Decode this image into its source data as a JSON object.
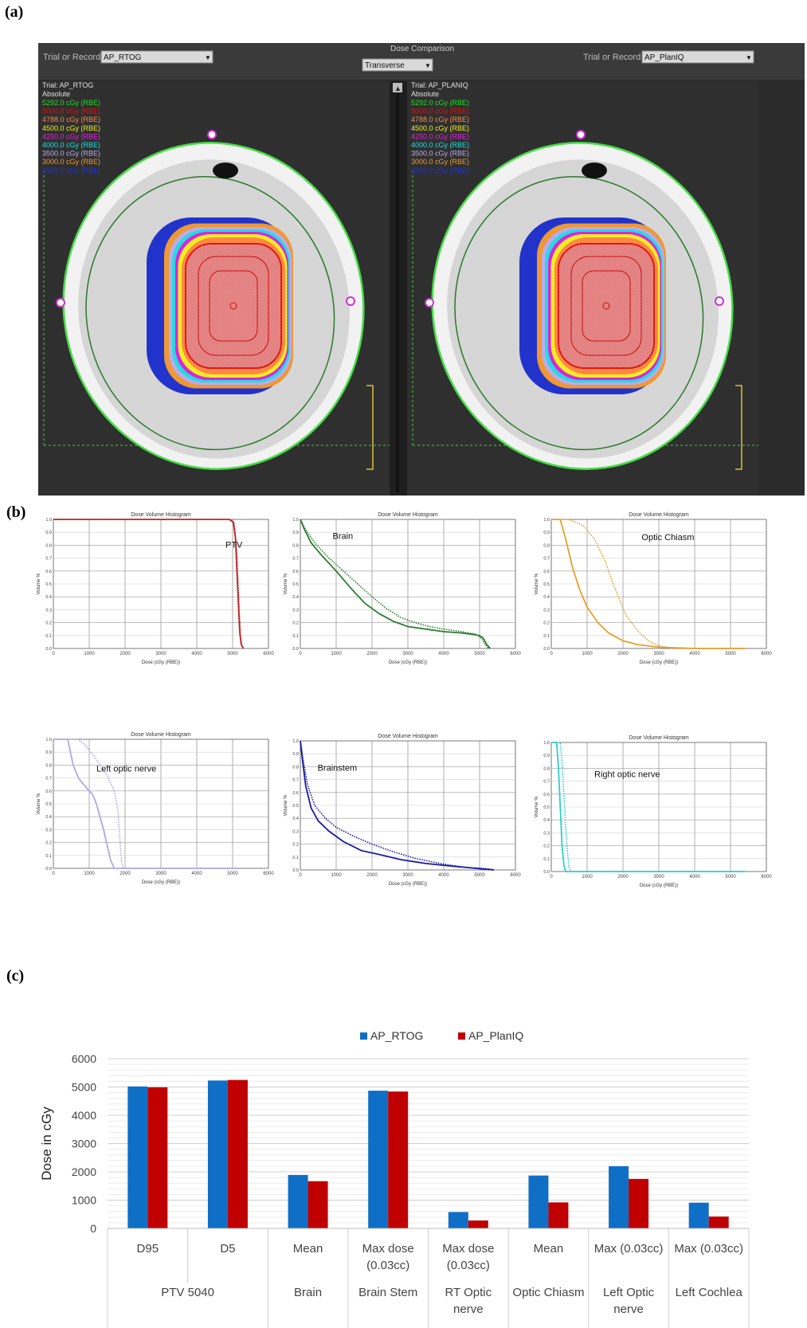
{
  "panels": {
    "a": "(a)",
    "b": "(b)",
    "c": "(c)"
  },
  "dose_comparison": {
    "header_title": "Dose Comparison",
    "view_select": "Transverse",
    "left": {
      "selector_label": "Trial or Record",
      "selector_value": "AP_RTOG",
      "trial_line": "Trial: AP_RTOG",
      "mode_line": "Absolute"
    },
    "right": {
      "selector_label": "Trial or Record",
      "selector_value": "AP_PlanIQ",
      "trial_line": "Trial: AP_PLANIQ",
      "mode_line": "Absolute"
    },
    "isodose_levels": [
      {
        "label": "5292.0 cGy (RBE)",
        "color": "#22dd22"
      },
      {
        "label": "5000.0 cGy (RBE)",
        "color": "#dd1111"
      },
      {
        "label": "4788.0 cGy (RBE)",
        "color": "#ff8844"
      },
      {
        "label": "4500.0 cGy (RBE)",
        "color": "#eeee22"
      },
      {
        "label": "4250.0 cGy (RBE)",
        "color": "#dd22dd"
      },
      {
        "label": "4000.0 cGy (RBE)",
        "color": "#22dddd"
      },
      {
        "label": "3500.0 cGy (RBE)",
        "color": "#bbaaee"
      },
      {
        "label": "3000.0 cGy (RBE)",
        "color": "#ee9933"
      },
      {
        "label": "2500.0 cGy (RBE)",
        "color": "#2233cc"
      }
    ]
  },
  "chart_data": [
    {
      "type": "line",
      "title": "Dose Volume Histogram",
      "annotation": "PTV",
      "xlabel": "Dose (cGy (RBE))",
      "ylabel": "Volume %",
      "xlim": [
        0,
        6000
      ],
      "ylim": [
        0,
        1.0
      ],
      "xticks": [
        "0",
        "1000",
        "2000",
        "3000",
        "4000",
        "5000",
        "6000"
      ],
      "yticks": [
        "0.0",
        "0.1",
        "0.2",
        "0.3",
        "0.4",
        "0.5",
        "0.6",
        "0.7",
        "0.8",
        "0.9",
        "1.0"
      ],
      "color": "#c0282b",
      "series": [
        {
          "style": "solid",
          "points": [
            [
              0,
              1
            ],
            [
              4900,
              1
            ],
            [
              5020,
              0.98
            ],
            [
              5080,
              0.85
            ],
            [
              5120,
              0.6
            ],
            [
              5160,
              0.35
            ],
            [
              5200,
              0.12
            ],
            [
              5240,
              0.03
            ],
            [
              5300,
              0
            ]
          ]
        },
        {
          "style": "dotted",
          "points": [
            [
              0,
              1
            ],
            [
              4920,
              1
            ],
            [
              5040,
              0.97
            ],
            [
              5100,
              0.82
            ],
            [
              5140,
              0.58
            ],
            [
              5180,
              0.32
            ],
            [
              5220,
              0.1
            ],
            [
              5260,
              0.02
            ],
            [
              5320,
              0
            ]
          ]
        }
      ]
    },
    {
      "type": "line",
      "title": "Dose Volume Histogram",
      "annotation": "Brain",
      "xlabel": "Dose (cGy (RBE))",
      "ylabel": "Volume %",
      "xlim": [
        0,
        6000
      ],
      "ylim": [
        0,
        1.0
      ],
      "xticks": [
        "0",
        "1000",
        "2000",
        "3000",
        "4000",
        "5000",
        "6000"
      ],
      "yticks": [
        "0.0",
        "0.1",
        "0.2",
        "0.3",
        "0.4",
        "0.5",
        "0.6",
        "0.7",
        "0.8",
        "0.9",
        "1.0"
      ],
      "color": "#2e7d32",
      "series": [
        {
          "style": "solid",
          "points": [
            [
              0,
              1
            ],
            [
              100,
              0.93
            ],
            [
              300,
              0.82
            ],
            [
              600,
              0.72
            ],
            [
              1000,
              0.6
            ],
            [
              1400,
              0.47
            ],
            [
              1800,
              0.35
            ],
            [
              2200,
              0.27
            ],
            [
              2600,
              0.21
            ],
            [
              3000,
              0.17
            ],
            [
              3500,
              0.15
            ],
            [
              4000,
              0.13
            ],
            [
              4500,
              0.12
            ],
            [
              4800,
              0.11
            ],
            [
              5000,
              0.1
            ],
            [
              5100,
              0.08
            ],
            [
              5200,
              0.03
            ],
            [
              5300,
              0
            ]
          ]
        },
        {
          "style": "dotted",
          "points": [
            [
              0,
              1
            ],
            [
              150,
              0.92
            ],
            [
              400,
              0.82
            ],
            [
              800,
              0.7
            ],
            [
              1200,
              0.6
            ],
            [
              1600,
              0.5
            ],
            [
              2000,
              0.4
            ],
            [
              2400,
              0.31
            ],
            [
              2800,
              0.24
            ],
            [
              3200,
              0.2
            ],
            [
              3600,
              0.17
            ],
            [
              4000,
              0.15
            ],
            [
              4500,
              0.13
            ],
            [
              4900,
              0.11
            ],
            [
              5050,
              0.08
            ],
            [
              5150,
              0.03
            ],
            [
              5250,
              0
            ]
          ]
        }
      ]
    },
    {
      "type": "line",
      "title": "Dose Volume Histogram",
      "annotation": "Optic Chiasm",
      "xlabel": "Dose (cGy (RBE))",
      "ylabel": "Volume %",
      "xlim": [
        0,
        6000
      ],
      "ylim": [
        0,
        1.0
      ],
      "xticks": [
        "0",
        "1000",
        "2000",
        "3000",
        "4000",
        "5000",
        "6000"
      ],
      "yticks": [
        "0.0",
        "0.1",
        "0.2",
        "0.3",
        "0.4",
        "0.5",
        "0.6",
        "0.7",
        "0.8",
        "0.9",
        "1.0"
      ],
      "color": "#e6a02a",
      "series": [
        {
          "style": "solid",
          "points": [
            [
              0,
              1
            ],
            [
              250,
              1
            ],
            [
              400,
              0.85
            ],
            [
              600,
              0.62
            ],
            [
              800,
              0.45
            ],
            [
              1000,
              0.32
            ],
            [
              1300,
              0.2
            ],
            [
              1600,
              0.12
            ],
            [
              2000,
              0.06
            ],
            [
              2400,
              0.03
            ],
            [
              3000,
              0.01
            ],
            [
              4000,
              0
            ],
            [
              5400,
              0
            ]
          ]
        },
        {
          "style": "dotted",
          "points": [
            [
              0,
              1
            ],
            [
              500,
              1
            ],
            [
              900,
              0.95
            ],
            [
              1200,
              0.85
            ],
            [
              1500,
              0.68
            ],
            [
              1700,
              0.52
            ],
            [
              1900,
              0.38
            ],
            [
              2100,
              0.25
            ],
            [
              2400,
              0.14
            ],
            [
              2700,
              0.06
            ],
            [
              3000,
              0.02
            ],
            [
              3400,
              0
            ],
            [
              5400,
              0
            ]
          ]
        }
      ]
    },
    {
      "type": "line",
      "title": "Dose Volume Histogram",
      "annotation": "Left optic nerve",
      "xlabel": "Dose (cGy (RBE))",
      "ylabel": "Volume %",
      "xlim": [
        0,
        6000
      ],
      "ylim": [
        0,
        1.0
      ],
      "xticks": [
        "0",
        "1000",
        "2000",
        "3000",
        "4000",
        "5000",
        "6000"
      ],
      "yticks": [
        "0.0",
        "0.1",
        "0.2",
        "0.3",
        "0.4",
        "0.5",
        "0.6",
        "0.7",
        "0.8",
        "0.9",
        "1.0"
      ],
      "color": "#b3a6e6",
      "series": [
        {
          "style": "solid",
          "points": [
            [
              0,
              1
            ],
            [
              400,
              1
            ],
            [
              550,
              0.8
            ],
            [
              700,
              0.7
            ],
            [
              900,
              0.63
            ],
            [
              1100,
              0.57
            ],
            [
              1200,
              0.5
            ],
            [
              1300,
              0.4
            ],
            [
              1400,
              0.3
            ],
            [
              1500,
              0.18
            ],
            [
              1600,
              0.06
            ],
            [
              1700,
              0
            ],
            [
              5200,
              0
            ]
          ]
        },
        {
          "style": "dotted",
          "points": [
            [
              0,
              1
            ],
            [
              700,
              1
            ],
            [
              900,
              0.95
            ],
            [
              1100,
              0.88
            ],
            [
              1300,
              0.8
            ],
            [
              1500,
              0.72
            ],
            [
              1700,
              0.6
            ],
            [
              1800,
              0.45
            ],
            [
              1850,
              0.25
            ],
            [
              1900,
              0.05
            ],
            [
              1950,
              0
            ],
            [
              5200,
              0
            ]
          ]
        }
      ]
    },
    {
      "type": "line",
      "title": "Dose Volume Histogram",
      "annotation": "Brainstem",
      "xlabel": "Dose (cGy (RBE))",
      "ylabel": "Volume %",
      "xlim": [
        0,
        6000
      ],
      "ylim": [
        0,
        1.0
      ],
      "xticks": [
        "0",
        "1000",
        "2000",
        "3000",
        "4000",
        "5000",
        "6000"
      ],
      "yticks": [
        "0.0",
        "0.1",
        "0.2",
        "0.3",
        "0.4",
        "0.5",
        "0.6",
        "0.7",
        "0.8",
        "0.9",
        "1.0"
      ],
      "color": "#1a1aa0",
      "series": [
        {
          "style": "solid",
          "points": [
            [
              0,
              1
            ],
            [
              60,
              0.85
            ],
            [
              150,
              0.65
            ],
            [
              300,
              0.48
            ],
            [
              500,
              0.38
            ],
            [
              800,
              0.3
            ],
            [
              1200,
              0.22
            ],
            [
              1700,
              0.15
            ],
            [
              2200,
              0.12
            ],
            [
              2800,
              0.08
            ],
            [
              3500,
              0.05
            ],
            [
              4200,
              0.03
            ],
            [
              5000,
              0.01
            ],
            [
              5400,
              0
            ]
          ]
        },
        {
          "style": "dotted",
          "points": [
            [
              0,
              1
            ],
            [
              80,
              0.85
            ],
            [
              200,
              0.66
            ],
            [
              400,
              0.5
            ],
            [
              700,
              0.4
            ],
            [
              1000,
              0.33
            ],
            [
              1500,
              0.26
            ],
            [
              2000,
              0.2
            ],
            [
              2600,
              0.14
            ],
            [
              3200,
              0.09
            ],
            [
              3900,
              0.05
            ],
            [
              4600,
              0.02
            ],
            [
              5200,
              0.01
            ],
            [
              5400,
              0
            ]
          ]
        }
      ]
    },
    {
      "type": "line",
      "title": "Dose Volume Histogram",
      "annotation": "Right optic nerve",
      "xlabel": "Dose (cGy (RBE))",
      "ylabel": "Volume %",
      "xlim": [
        0,
        6000
      ],
      "ylim": [
        0,
        1.0
      ],
      "xticks": [
        "0",
        "1000",
        "2000",
        "3000",
        "4000",
        "5000",
        "6000"
      ],
      "yticks": [
        "0.0",
        "0.1",
        "0.2",
        "0.3",
        "0.4",
        "0.5",
        "0.6",
        "0.7",
        "0.8",
        "0.9",
        "1.0"
      ],
      "color": "#2ecfcf",
      "series": [
        {
          "style": "solid",
          "points": [
            [
              0,
              1
            ],
            [
              150,
              1
            ],
            [
              200,
              0.8
            ],
            [
              250,
              0.5
            ],
            [
              300,
              0.2
            ],
            [
              350,
              0.05
            ],
            [
              400,
              0
            ],
            [
              5400,
              0
            ]
          ]
        },
        {
          "style": "dotted",
          "points": [
            [
              0,
              1
            ],
            [
              250,
              1
            ],
            [
              300,
              0.85
            ],
            [
              350,
              0.6
            ],
            [
              400,
              0.35
            ],
            [
              450,
              0.15
            ],
            [
              500,
              0.03
            ],
            [
              550,
              0
            ],
            [
              5400,
              0
            ]
          ]
        }
      ]
    },
    {
      "type": "bar",
      "ylabel": "Dose  in cGy",
      "ylim": [
        0,
        6000
      ],
      "yticks": [
        "0",
        "1000",
        "2000",
        "3000",
        "4000",
        "5000",
        "6000"
      ],
      "legend": "top",
      "categories": [
        {
          "metric": [
            "D95"
          ],
          "structure": [
            "PTV 5040"
          ],
          "group_start": true
        },
        {
          "metric": [
            "D5"
          ],
          "structure": [],
          "group_start": false
        },
        {
          "metric": [
            "Mean"
          ],
          "structure": [
            "Brain"
          ],
          "group_start": true
        },
        {
          "metric": [
            "Max dose",
            "(0.03cc)"
          ],
          "structure": [
            "Brain Stem"
          ],
          "group_start": true
        },
        {
          "metric": [
            "Max dose",
            "(0.03cc)"
          ],
          "structure": [
            "RT Optic",
            "nerve"
          ],
          "group_start": true
        },
        {
          "metric": [
            "Mean"
          ],
          "structure": [
            "Optic Chiasm"
          ],
          "group_start": true
        },
        {
          "metric": [
            "Max (0.03cc)"
          ],
          "structure": [
            "Left Optic",
            "nerve"
          ],
          "group_start": true
        },
        {
          "metric": [
            "Max (0.03cc)"
          ],
          "structure": [
            "Left Cochlea"
          ],
          "group_start": true
        }
      ],
      "series": [
        {
          "name": "AP_RTOG",
          "color": "#0f6fc6",
          "values": [
            5020,
            5230,
            1890,
            4870,
            580,
            1870,
            2200,
            910
          ]
        },
        {
          "name": "AP_PlanIQ",
          "color": "#c00000",
          "values": [
            4990,
            5250,
            1670,
            4840,
            280,
            920,
            1750,
            420
          ]
        }
      ]
    }
  ]
}
